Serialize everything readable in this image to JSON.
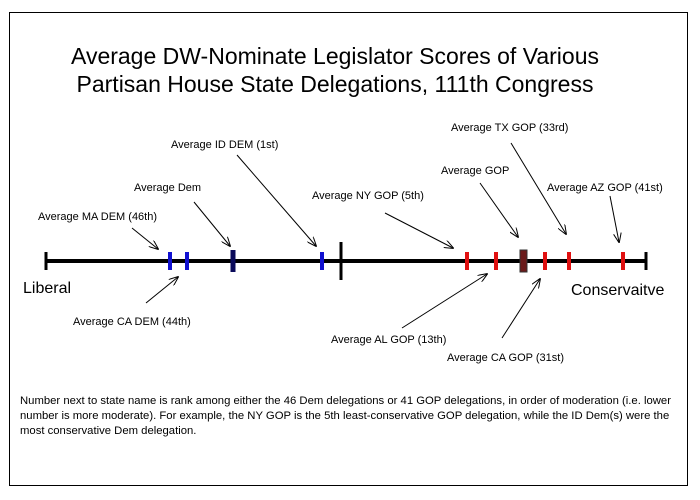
{
  "title": {
    "line1": "Average DW-Nominate Legislator Scores of Various",
    "line2": "Partisan House State Delegations, 111th Congress"
  },
  "axis": {
    "left_label": "Liberal",
    "right_label": "Conservaitve"
  },
  "markers": [
    {
      "id": "ma-dem",
      "label": "Average MA DEM (46th)",
      "color": "#1010d0"
    },
    {
      "id": "ca-dem",
      "label": "Average CA DEM (44th)",
      "color": "#1010d0"
    },
    {
      "id": "avg-dem",
      "label": "Average Dem",
      "color": "#0a0a5a"
    },
    {
      "id": "id-dem",
      "label": "Average ID DEM (1st)",
      "color": "#1010d0"
    },
    {
      "id": "ny-gop",
      "label": "Average NY GOP (5th)",
      "color": "#e01010"
    },
    {
      "id": "al-gop",
      "label": "Average AL GOP (13th)",
      "color": "#e01010"
    },
    {
      "id": "avg-gop",
      "label": "Average GOP",
      "color": "#6a1a1a"
    },
    {
      "id": "ca-gop",
      "label": "Average CA  GOP (31st)",
      "color": "#e01010"
    },
    {
      "id": "tx-gop",
      "label": "Average TX GOP (33rd)",
      "color": "#e01010"
    },
    {
      "id": "az-gop",
      "label": "Average AZ GOP (41st)",
      "color": "#e01010"
    }
  ],
  "note": "Number next to state name is rank among either the 46 Dem delegations or 41 GOP delegations, in order of moderation (i.e. lower number is more moderate). For example, the NY GOP is the 5th least-conservative GOP delegation, while the ID Dem(s) were the most conservative Dem delegation."
}
